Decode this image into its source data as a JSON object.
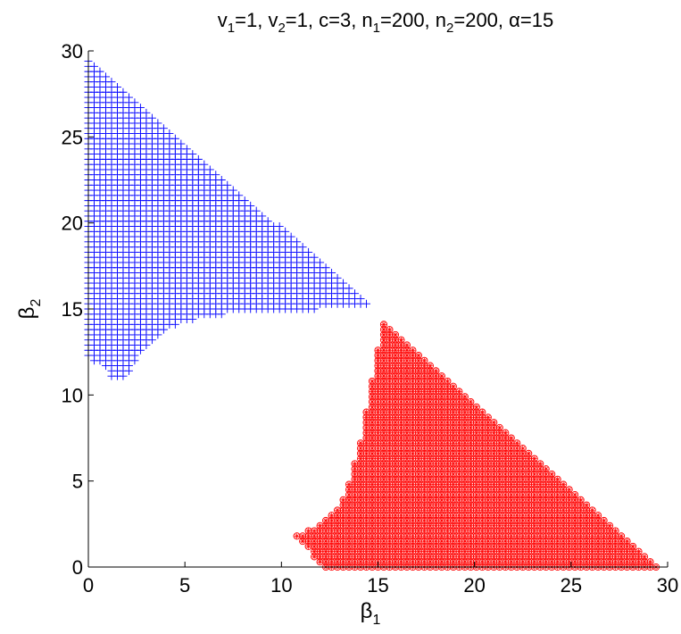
{
  "chart_data": {
    "type": "scatter",
    "title": {
      "parts": [
        {
          "t": "v"
        },
        {
          "t": "1",
          "sub": true
        },
        {
          "t": "=1, v"
        },
        {
          "t": "2",
          "sub": true
        },
        {
          "t": "=1, c=3, n"
        },
        {
          "t": "1",
          "sub": true
        },
        {
          "t": "=200, n"
        },
        {
          "t": "2",
          "sub": true
        },
        {
          "t": "=200, α=15"
        }
      ]
    },
    "xlabel": {
      "main": "β",
      "sub": "1"
    },
    "ylabel": {
      "main": "β",
      "sub": "2"
    },
    "xlim": [
      0,
      30
    ],
    "ylim": [
      0,
      30
    ],
    "xticks": [
      "0",
      "5",
      "10",
      "15",
      "20",
      "25",
      "30"
    ],
    "yticks": [
      "0",
      "5",
      "10",
      "15",
      "20",
      "25",
      "30"
    ],
    "grid": false,
    "sampling_step": 0.3,
    "series": [
      {
        "marker": "plus",
        "color": "#0000ff",
        "region": [
          [
            0,
            29.5
          ],
          [
            0.3,
            29.2
          ],
          [
            14.5,
            15.3
          ],
          [
            14.5,
            15.1
          ],
          [
            12,
            15.0
          ],
          [
            9,
            14.9
          ],
          [
            6,
            14.6
          ],
          [
            4,
            13.9
          ],
          [
            2.8,
            12.6
          ],
          [
            1.8,
            10.8
          ],
          [
            1.2,
            11.1
          ],
          [
            0.6,
            11.8
          ],
          [
            0,
            12.2
          ]
        ]
      },
      {
        "marker": "circle-star",
        "color": "#ff0000",
        "region": [
          [
            15.2,
            14.4
          ],
          [
            15.6,
            13.9
          ],
          [
            29.5,
            0.0
          ],
          [
            12.2,
            0.0
          ],
          [
            11.5,
            0.8
          ],
          [
            10.8,
            1.6
          ],
          [
            10.8,
            2.0
          ],
          [
            11.5,
            2.2
          ],
          [
            12.2,
            2.6
          ],
          [
            13.0,
            3.6
          ],
          [
            13.5,
            5.0
          ],
          [
            13.9,
            6.6
          ],
          [
            14.3,
            8.2
          ],
          [
            14.5,
            10.2
          ],
          [
            14.9,
            11.6
          ],
          [
            15.0,
            12.8
          ]
        ]
      }
    ]
  }
}
